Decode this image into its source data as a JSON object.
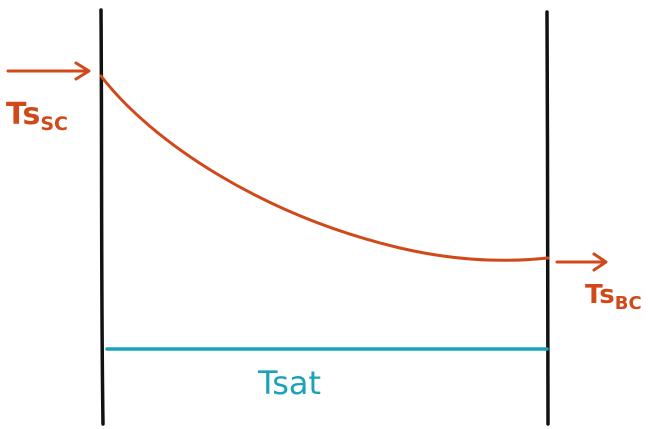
{
  "colors": {
    "wall": "#111111",
    "temperature": "#d0491a",
    "saturation": "#1aa3b8"
  },
  "labels": {
    "inlet": {
      "main": "Ts",
      "sub": "SC"
    },
    "outlet": {
      "main": "Ts",
      "sub": "BC"
    },
    "saturation": "Tsat"
  },
  "icons": {
    "inlet_arrow": "arrow-right-icon",
    "outlet_arrow": "arrow-right-icon"
  }
}
